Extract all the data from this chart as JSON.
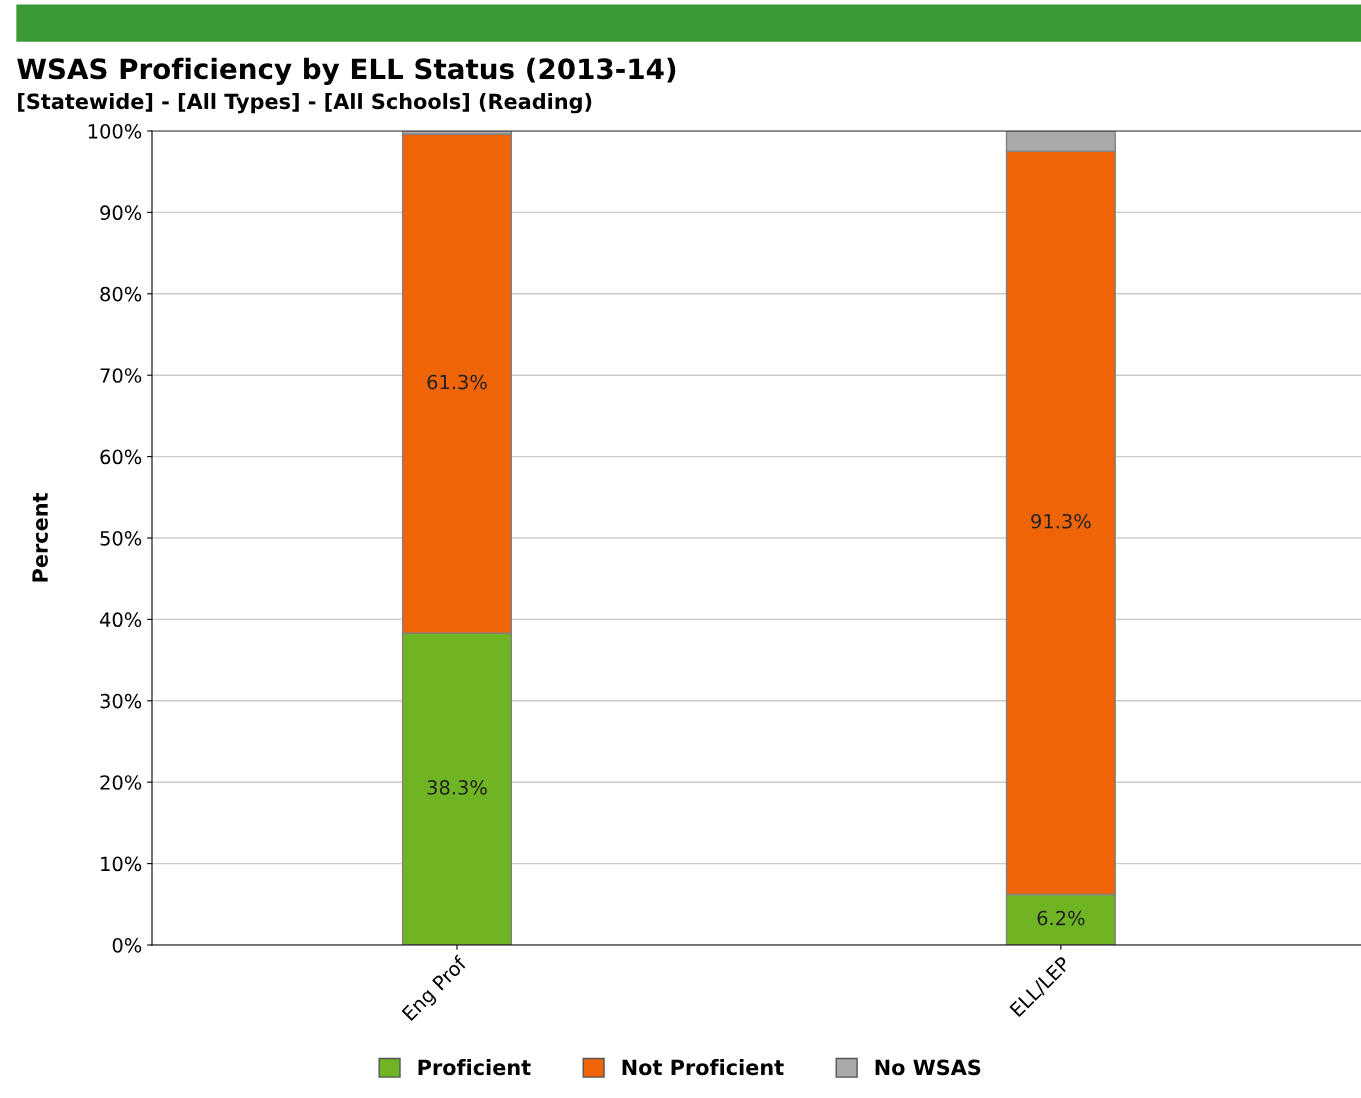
{
  "chart_data": {
    "type": "bar",
    "stacked": true,
    "title": "WSAS Proficiency by ELL Status (2013-14)",
    "subtitle": "[Statewide] - [All Types] - [All Schools] (Reading)",
    "ylabel": "Percent",
    "categories": [
      "Eng Prof",
      "ELL/LEP"
    ],
    "series": [
      {
        "name": "Proficient",
        "color": "#6fb523",
        "values": [
          38.3,
          6.2
        ],
        "value_labels": [
          "38.3%",
          "6.2%"
        ]
      },
      {
        "name": "Not Proficient",
        "color": "#f06408",
        "values": [
          61.3,
          91.3
        ],
        "value_labels": [
          "61.3%",
          "91.3%"
        ]
      },
      {
        "name": "No WSAS",
        "color": "#a9a9a9",
        "values": [
          0.4,
          2.5
        ],
        "value_labels": [
          null,
          null
        ]
      }
    ],
    "ylim": [
      0,
      100
    ],
    "yticks": [
      {
        "value": 0,
        "label": "0%"
      },
      {
        "value": 10,
        "label": "10%"
      },
      {
        "value": 20,
        "label": "20%"
      },
      {
        "value": 30,
        "label": "30%"
      },
      {
        "value": 40,
        "label": "40%"
      },
      {
        "value": 50,
        "label": "50%"
      },
      {
        "value": 60,
        "label": "60%"
      },
      {
        "value": 70,
        "label": "70%"
      },
      {
        "value": 80,
        "label": "80%"
      },
      {
        "value": 90,
        "label": "90%"
      },
      {
        "value": 100,
        "label": "100%"
      }
    ],
    "grid": "y",
    "legend": "bottom"
  }
}
